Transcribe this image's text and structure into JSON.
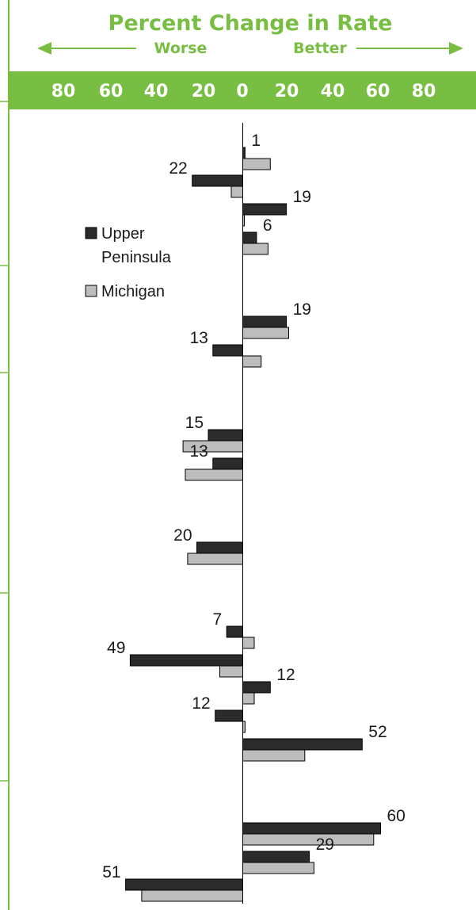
{
  "chart_data": {
    "type": "bar",
    "orientation": "horizontal",
    "title": "Percent Change in Rate",
    "direction_left": "Worse",
    "direction_right": "Better",
    "xlim": [
      -80,
      80
    ],
    "ticks": [
      "80",
      "60",
      "40",
      "20",
      "0",
      "20",
      "40",
      "60",
      "80"
    ],
    "colors": {
      "accent": "#78be43",
      "upper_peninsula": "#2b2b2b",
      "michigan": "#bdbdbd",
      "axis": "#000000"
    },
    "series": [
      {
        "name": "Upper Peninsula",
        "color": "#2b2b2b"
      },
      {
        "name": "Michigan",
        "color": "#bdbdbd"
      }
    ],
    "groups": [
      {
        "up": 1,
        "mi": 12,
        "label": "1",
        "label_side": "right"
      },
      {
        "up": -22,
        "mi": -5,
        "label": "22",
        "label_side": "left"
      },
      {
        "up": 19,
        "mi": 0,
        "label": "19",
        "label_side": "right"
      },
      {
        "up": 6,
        "mi": 11,
        "label": "6",
        "label_side": "right"
      },
      {
        "up": 19,
        "mi": 20,
        "label": "19",
        "label_side": "right"
      },
      {
        "up": -13,
        "mi": 8,
        "label": "13",
        "label_side": "left"
      },
      {
        "up": -15,
        "mi": -26,
        "label": "15",
        "label_side": "left"
      },
      {
        "up": -13,
        "mi": -25,
        "label": "13",
        "label_side": "left"
      },
      {
        "up": -20,
        "mi": -24,
        "label": "20",
        "label_side": "left"
      },
      {
        "up": -7,
        "mi": 5,
        "label": "7",
        "label_side": "left"
      },
      {
        "up": -49,
        "mi": -10,
        "label": "49",
        "label_side": "left"
      },
      {
        "up": 12,
        "mi": 5,
        "label": "12",
        "label_side": "right"
      },
      {
        "up": -12,
        "mi": 1,
        "label": "12",
        "label_side": "left"
      },
      {
        "up": 52,
        "mi": 27,
        "label": "52",
        "label_side": "right"
      },
      {
        "up": 60,
        "mi": 57,
        "label": "60",
        "label_side": "right"
      },
      {
        "up": 29,
        "mi": 31,
        "label": "29",
        "label_side": "right"
      },
      {
        "up": -51,
        "mi": -44,
        "label": "51",
        "label_side": "left"
      }
    ],
    "legend": {
      "position": "left-upper",
      "up_line1": "Upper",
      "up_line2": "Peninsula",
      "mi": "Michigan"
    }
  }
}
